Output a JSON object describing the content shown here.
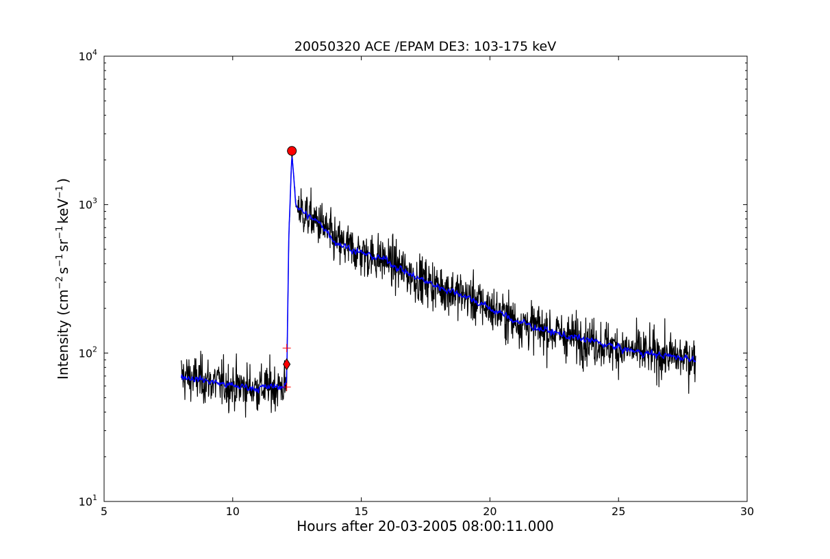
{
  "chart_data": {
    "type": "line",
    "title": "20050320 ACE /EPAM DE3: 103-175 keV",
    "xlabel": "Hours after 20-03-2005 08:00:11.000",
    "ylabel_parts": {
      "prefix": "Intensity (cm",
      "exp1": "−2",
      "s": "s",
      "exp2": "−1",
      "sr": "sr",
      "exp3": "−1",
      "kev": "keV",
      "exp4": "−1",
      "suffix": ")"
    },
    "xlim": [
      5,
      30
    ],
    "ylim": [
      10,
      10000
    ],
    "yscale": "log",
    "grid": false,
    "x_ticks": [
      {
        "value": 5,
        "label": "5"
      },
      {
        "value": 10,
        "label": "10"
      },
      {
        "value": 15,
        "label": "15"
      },
      {
        "value": 20,
        "label": "20"
      },
      {
        "value": 25,
        "label": "25"
      },
      {
        "value": 30,
        "label": "30"
      }
    ],
    "y_ticks": [
      {
        "value": 10,
        "base": "10",
        "exp": "1"
      },
      {
        "value": 100,
        "base": "10",
        "exp": "2"
      },
      {
        "value": 1000,
        "base": "10",
        "exp": "3"
      },
      {
        "value": 10000,
        "base": "10",
        "exp": "4"
      }
    ],
    "raw_profile": {
      "color": "#000000",
      "x": [
        8.0,
        9.0,
        10.0,
        11.0,
        12.0,
        12.1,
        12.18,
        12.3,
        12.38,
        12.45,
        12.7,
        13.0,
        13.5,
        14.0,
        15.0,
        16.0,
        17.0,
        18.0,
        19.0,
        20.0,
        21.0,
        22.0,
        23.0,
        24.0,
        25.0,
        26.0,
        27.0,
        28.0
      ],
      "y": [
        70,
        65,
        60,
        58,
        60,
        62,
        600,
        2200,
        1500,
        1000,
        900,
        820,
        720,
        560,
        470,
        420,
        330,
        280,
        245,
        200,
        165,
        145,
        130,
        120,
        108,
        100,
        95,
        92
      ],
      "noise_factor": 0.32
    },
    "smoothed_profile": {
      "color": "#0000ff",
      "x": [
        8.0,
        9.0,
        10.0,
        11.0,
        12.0,
        12.1,
        12.18,
        12.3,
        12.38,
        12.45,
        12.7,
        13.0,
        13.5,
        14.0,
        15.0,
        16.0,
        17.0,
        18.0,
        19.0,
        20.0,
        21.0,
        22.0,
        23.0,
        24.0,
        25.0,
        26.0,
        27.0,
        28.0
      ],
      "y": [
        70,
        65,
        60,
        58,
        60,
        62,
        600,
        2200,
        1500,
        1000,
        900,
        820,
        720,
        560,
        470,
        420,
        330,
        280,
        245,
        200,
        165,
        145,
        130,
        120,
        108,
        100,
        95,
        92
      ],
      "noise_factor": 0.1
    },
    "markers": [
      {
        "kind": "peak",
        "shape": "circle",
        "color": "#ff0000",
        "x": 12.3,
        "y": 2300
      },
      {
        "kind": "onset",
        "shape": "diamond",
        "color": "#ff0000",
        "x": 12.1,
        "y": 84
      },
      {
        "kind": "onset-upper",
        "shape": "plus",
        "color": "#ff0000",
        "x": 12.1,
        "y": 108
      },
      {
        "kind": "onset-lower",
        "shape": "plus",
        "color": "#ff0000",
        "x": 12.1,
        "y": 59
      }
    ]
  }
}
